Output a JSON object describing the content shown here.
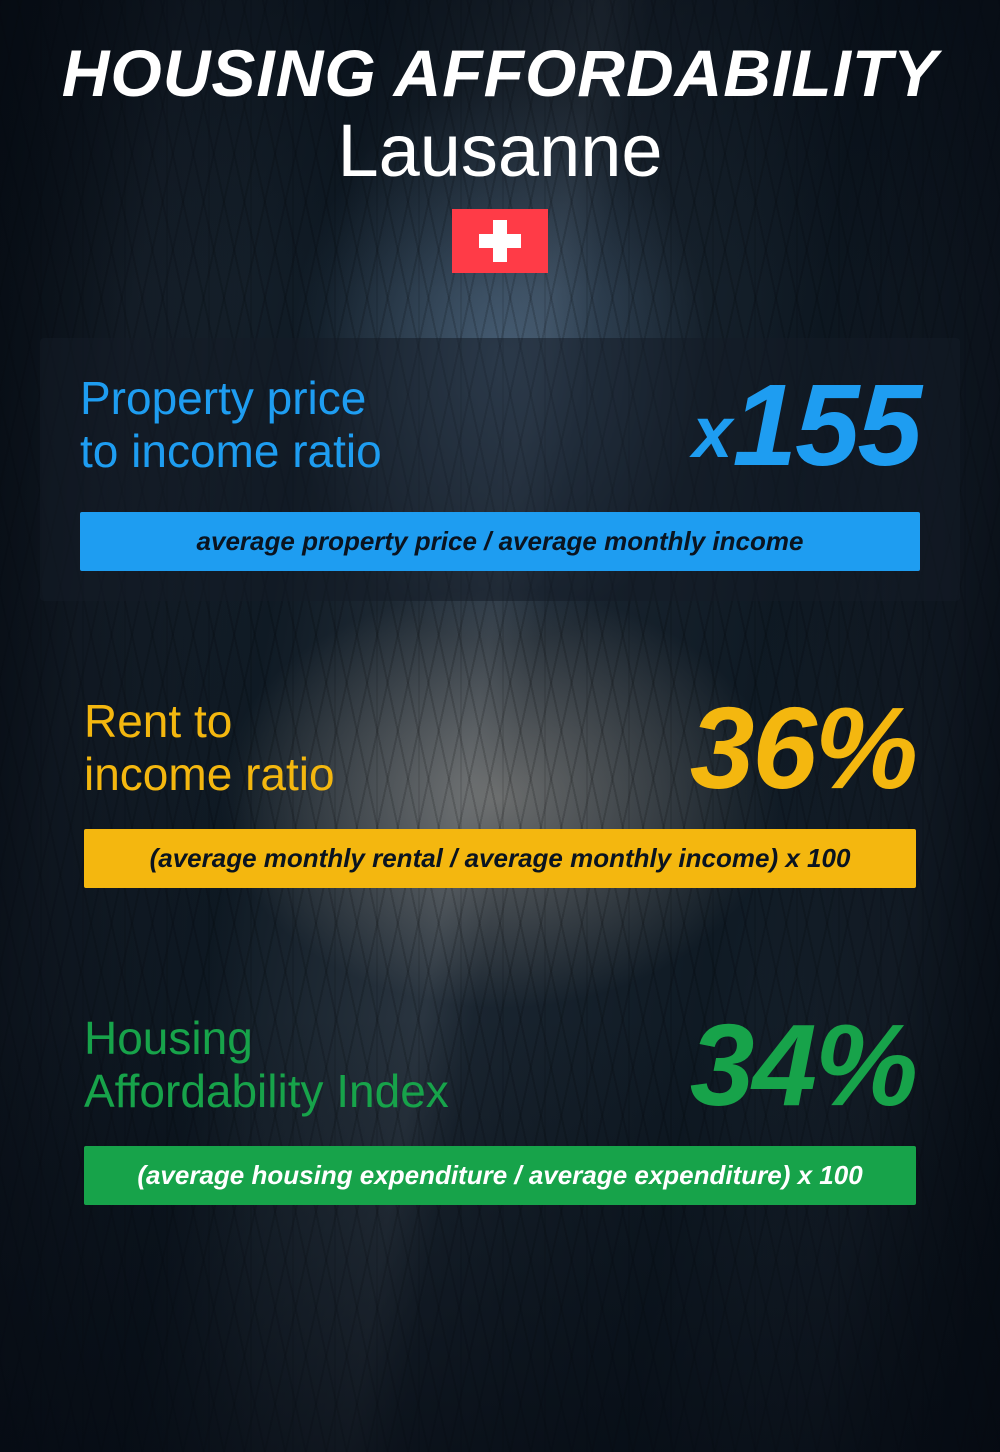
{
  "header": {
    "title": "HOUSING AFFORDABILITY",
    "subtitle": "Lausanne",
    "flag": {
      "name": "switzerland",
      "bg": "#ff3b47",
      "cross": "#ffffff"
    }
  },
  "metrics": [
    {
      "label": "Property price\nto income ratio",
      "value_prefix": "x",
      "value": "155",
      "formula": "average property price / average monthly income",
      "accent": "#1e9df1",
      "formula_text_color": "#0a1420",
      "panel": true
    },
    {
      "label": "Rent to\nincome ratio",
      "value_prefix": "",
      "value": "36%",
      "formula": "(average monthly rental / average monthly income) x 100",
      "accent": "#f4b70f",
      "formula_text_color": "#0a1420",
      "panel": false
    },
    {
      "label": "Housing\nAffordability Index",
      "value_prefix": "",
      "value": "34%",
      "formula": "(average housing expenditure / average expenditure) x 100",
      "accent": "#17a34a",
      "formula_text_color": "#ffffff",
      "panel": false
    }
  ],
  "typography": {
    "title_fontsize": 66,
    "subtitle_fontsize": 74,
    "label_fontsize": 46,
    "value_fontsize": 116,
    "formula_fontsize": 26
  },
  "colors": {
    "text": "#ffffff",
    "panel_bg": "rgba(20,28,38,0.55)",
    "page_bg": "#0a1420"
  }
}
